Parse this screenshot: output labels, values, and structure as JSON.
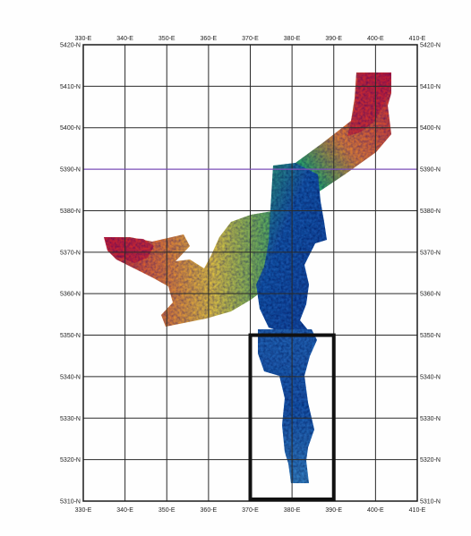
{
  "map": {
    "x_labels": [
      "330-E",
      "340-E",
      "350-E",
      "360-E",
      "370-E",
      "380-E",
      "390-E",
      "400-E",
      "410-E"
    ],
    "y_labels": [
      "5420-N",
      "5410-N",
      "5400-N",
      "5390-N",
      "5380-N",
      "5370-N",
      "5360-N",
      "5350-N",
      "5340-N",
      "5330-N",
      "5320-N",
      "5310-N"
    ],
    "x_range": [
      330,
      410
    ],
    "y_range": [
      5310,
      5420
    ],
    "highlighted_gridline_N": 5390,
    "outlined_area": {
      "x_min": 370,
      "x_max": 390,
      "y_min": 5310,
      "y_max": 5350
    },
    "colors": {
      "grid": "#2a2a2a",
      "highlight_line": "#7a4fb8",
      "frame": "#1a1a1a",
      "outline_box": "#111111",
      "high": "#d8261b",
      "mid_high": "#f08a24",
      "mid": "#f2d23a",
      "mid_low": "#37b36b",
      "low": "#1f5fb8"
    }
  }
}
